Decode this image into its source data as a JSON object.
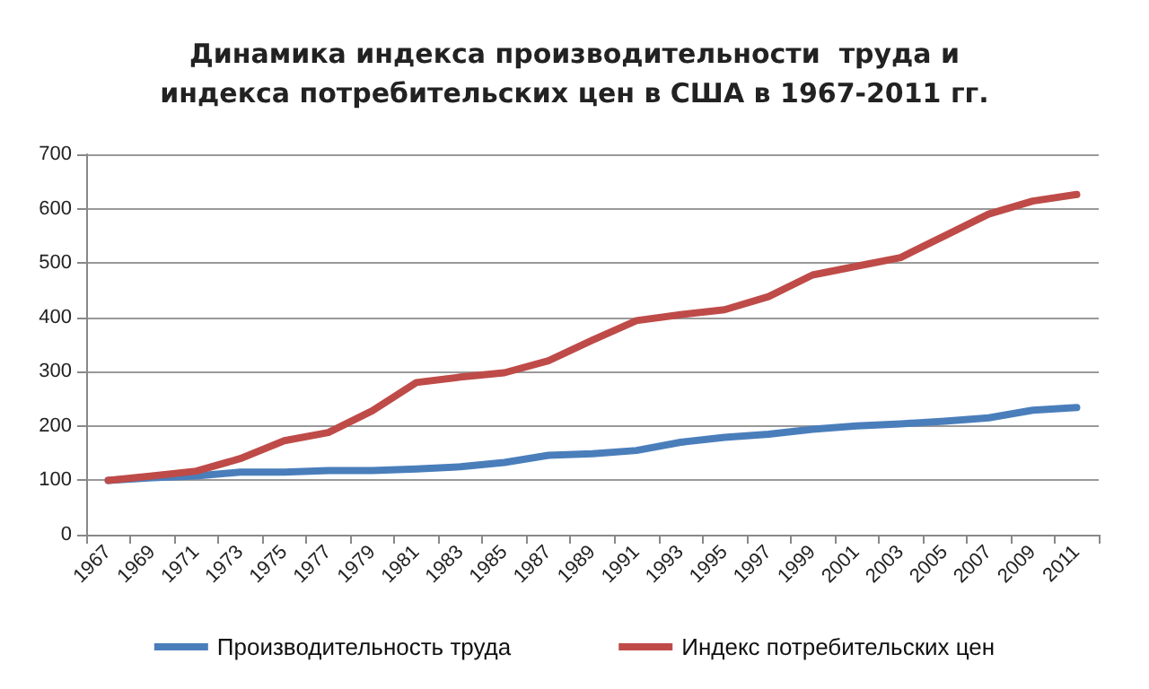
{
  "chart_data": {
    "type": "line",
    "title": "Динамика индекса производительности  труда и\nиндекса потребительских цен в США в 1967-2011 гг.",
    "categories": [
      "1967",
      "1969",
      "1971",
      "1973",
      "1975",
      "1977",
      "1979",
      "1981",
      "1983",
      "1985",
      "1987",
      "1989",
      "1991",
      "1993",
      "1995",
      "1997",
      "1999",
      "2001",
      "2003",
      "2005",
      "2007",
      "2009",
      "2011"
    ],
    "series": [
      {
        "name": "Производительность труда",
        "color": "#4a7ebb",
        "values": [
          100,
          105,
          108,
          115,
          115,
          118,
          118,
          121,
          125,
          133,
          146,
          149,
          155,
          170,
          179,
          185,
          194,
          200,
          204,
          209,
          215,
          229,
          234
        ]
      },
      {
        "name": "Индекс потребительских цен",
        "color": "#be4b48",
        "values": [
          100,
          108,
          117,
          140,
          173,
          188,
          228,
          280,
          290,
          298,
          320,
          358,
          394,
          405,
          414,
          438,
          478,
          494,
          510,
          550,
          590,
          614,
          626
        ]
      }
    ],
    "ylim": [
      0,
      700
    ],
    "yticks": [
      0,
      100,
      200,
      300,
      400,
      500,
      600,
      700
    ],
    "grid": "y",
    "legend": "bottom",
    "marker": "none",
    "line_style": "solid"
  }
}
